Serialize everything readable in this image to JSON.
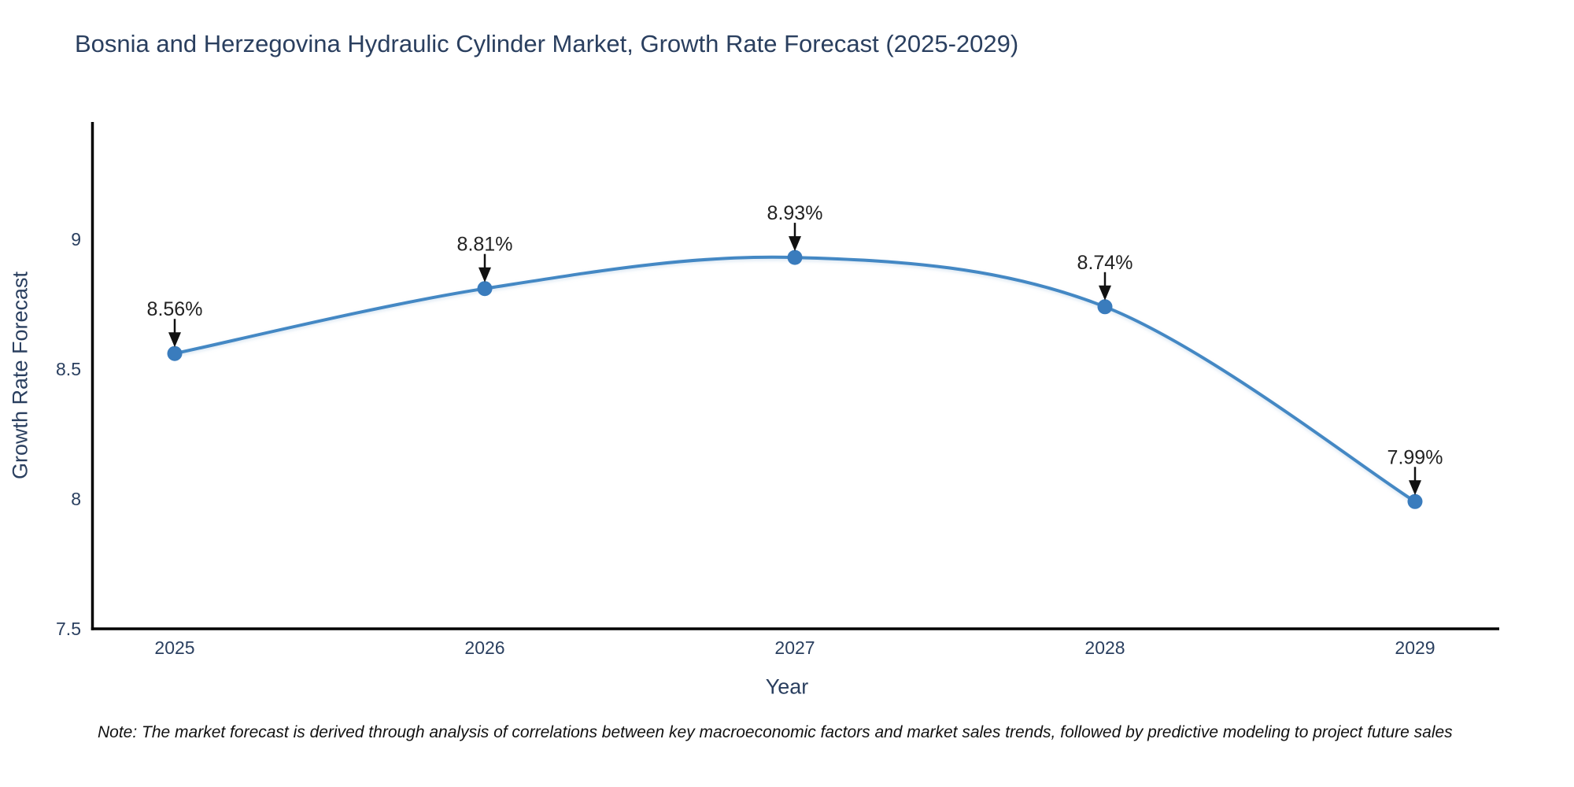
{
  "header": {
    "title": "Bosnia and Herzegovina Hydraulic Cylinder Market, Growth Rate Forecast (2025-2029)"
  },
  "chart_data": {
    "type": "line",
    "line_shape": "spline",
    "x": [
      2025,
      2026,
      2027,
      2028,
      2029
    ],
    "xtick_labels": [
      "2025",
      "2026",
      "2027",
      "2028",
      "2029"
    ],
    "series": [
      {
        "name": "Growth Rate Forecast",
        "values": [
          8.56,
          8.81,
          8.93,
          8.74,
          7.99
        ]
      }
    ],
    "point_labels": [
      "8.56%",
      "8.81%",
      "8.93%",
      "8.74%",
      "7.99%"
    ],
    "title": "Bosnia and Herzegovina Hydraulic Cylinder Market, Growth Rate Forecast (2025-2029)",
    "xlabel": "Year",
    "ylabel": "Growth Rate Forecast",
    "ylim": [
      7.5,
      9.45
    ],
    "yticks": [
      7.5,
      8,
      8.5,
      9
    ],
    "ytick_labels": [
      "7.5",
      "8",
      "8.5",
      "9"
    ],
    "grid": false,
    "legend": "none",
    "colors": {
      "line": "#4488c4",
      "marker": "#3a7cbd",
      "axis_line": "#000000",
      "tick_text": "#2a3f5f",
      "title_text": "#2a3f5f",
      "annotation_text": "#222222",
      "annotation_arrow": "#111111"
    }
  },
  "footnote": {
    "text": "Note: The market forecast is derived through analysis of correlations between key macroeconomic factors and market sales trends, followed by predictive modeling to project future sales"
  }
}
